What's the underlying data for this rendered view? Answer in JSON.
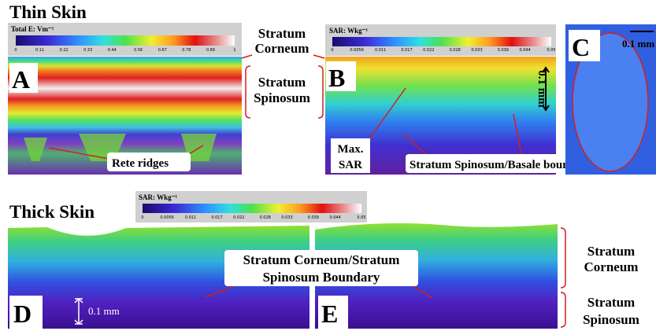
{
  "thin_skin": {
    "title": "Thin Skin",
    "panel_a": {
      "label": "A",
      "colorbar": {
        "title": "Total E: Vm⁻¹",
        "ticks": [
          0,
          0.11,
          0.22,
          0.33,
          0.44,
          0.56,
          0.67,
          0.78,
          0.89,
          1
        ]
      },
      "annotation": "Rete ridges"
    },
    "layer_labels": {
      "corneum": [
        "Stratum",
        "Corneum"
      ],
      "spinosum": [
        "Stratum",
        "Spinosum"
      ]
    },
    "panel_b": {
      "label": "B",
      "colorbar": {
        "title": "SAR: Wkg⁻¹",
        "ticks": [
          0,
          0.0056,
          0.011,
          0.017,
          0.022,
          0.028,
          0.033,
          0.039,
          0.044,
          0.05
        ]
      },
      "scale": "0.1 mm",
      "max_sar": [
        "Max.",
        "SAR"
      ],
      "boundary": "Stratum Spinosum/Basale boundary"
    },
    "panel_c": {
      "label": "C",
      "scale": "0.1 mm"
    }
  },
  "thick_skin": {
    "title": "Thick Skin",
    "colorbar": {
      "title": "SAR: Wkg⁻¹",
      "ticks": [
        0,
        0.0056,
        0.011,
        0.017,
        0.022,
        0.028,
        0.033,
        0.039,
        0.044,
        0.05
      ]
    },
    "panel_d": {
      "label": "D",
      "scale": "0.1 mm"
    },
    "panel_e": {
      "label": "E"
    },
    "boundary": [
      "Stratum Corneum/Stratum",
      "Spinosum Boundary"
    ],
    "layer_labels": {
      "corneum": [
        "Stratum",
        "Corneum"
      ],
      "spinosum": [
        "Stratum",
        "Spinosum"
      ]
    }
  }
}
